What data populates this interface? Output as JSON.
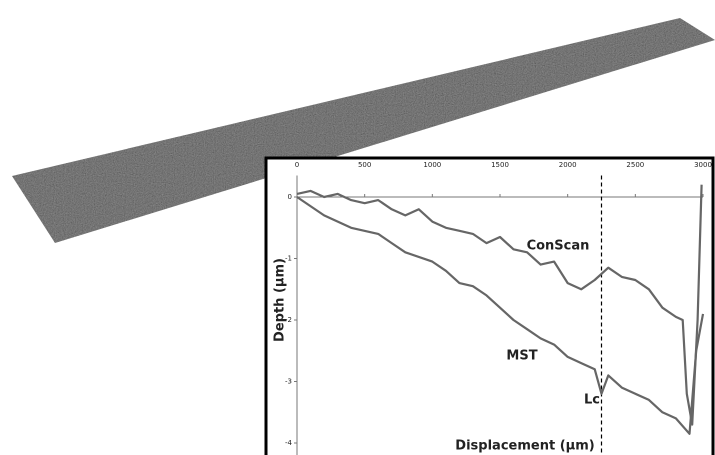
{
  "chart_data": {
    "type": "line",
    "x_label": "Displacement (µm)",
    "y_label": "Depth (µm)",
    "annotations": [
      "ConScan",
      "MST",
      "Lc"
    ],
    "lc_x": 2250,
    "xlim": [
      0,
      3000
    ],
    "xticks": [
      0,
      500,
      1000,
      1500,
      2000,
      2500,
      3000
    ],
    "ylim": [
      -4,
      0.35
    ],
    "yticks": [
      0,
      -1,
      -2,
      -3,
      -4
    ],
    "series": [
      {
        "name": "ConScan",
        "color": "#666666",
        "x": [
          0,
          100,
          200,
          300,
          400,
          500,
          600,
          700,
          800,
          900,
          1000,
          1100,
          1200,
          1300,
          1400,
          1500,
          1600,
          1700,
          1800,
          1900,
          2000,
          2100,
          2200,
          2300,
          2400,
          2500,
          2600,
          2700,
          2800,
          2850,
          2880,
          2920,
          2960,
          2990
        ],
        "values": [
          0.05,
          0.1,
          0.0,
          0.05,
          -0.05,
          -0.1,
          -0.05,
          -0.2,
          -0.3,
          -0.2,
          -0.4,
          -0.5,
          -0.55,
          -0.6,
          -0.75,
          -0.65,
          -0.85,
          -0.9,
          -1.1,
          -1.05,
          -1.4,
          -1.5,
          -1.35,
          -1.15,
          -1.3,
          -1.35,
          -1.5,
          -1.8,
          -1.95,
          -2.0,
          -3.2,
          -3.7,
          -2.0,
          0.2
        ]
      },
      {
        "name": "MST",
        "color": "#666666",
        "x": [
          0,
          200,
          400,
          600,
          700,
          800,
          1000,
          1100,
          1200,
          1300,
          1400,
          1500,
          1600,
          1700,
          1800,
          1900,
          2000,
          2100,
          2200,
          2250,
          2300,
          2400,
          2500,
          2600,
          2700,
          2800,
          2900,
          2950,
          3000
        ],
        "values": [
          0.0,
          -0.3,
          -0.5,
          -0.6,
          -0.75,
          -0.9,
          -1.05,
          -1.2,
          -1.4,
          -1.45,
          -1.6,
          -1.8,
          -2.0,
          -2.15,
          -2.3,
          -2.4,
          -2.6,
          -2.7,
          -2.8,
          -3.2,
          -2.9,
          -3.1,
          -3.2,
          -3.3,
          -3.5,
          -3.6,
          -3.85,
          -2.5,
          -1.9
        ]
      }
    ]
  }
}
